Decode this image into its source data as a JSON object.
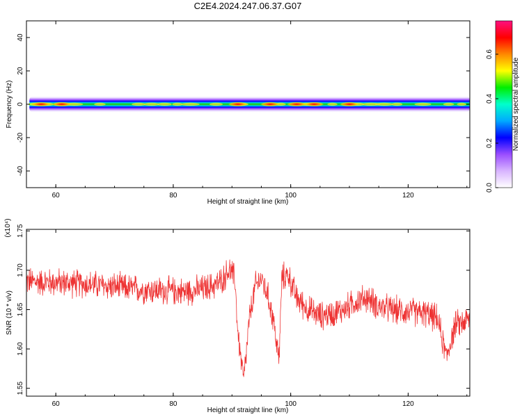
{
  "title": "C2E4.2024.247.06.37.G07",
  "chart_data": [
    {
      "type": "heatmap",
      "xlabel": "Height of straight line (km)",
      "ylabel": "Frequency (Hz)",
      "xlim": [
        55,
        130.5
      ],
      "ylim": [
        -50,
        50
      ],
      "xticks": [
        60,
        80,
        100,
        120
      ],
      "xtick_labels": [
        "60",
        "80",
        "100",
        "120"
      ],
      "yticks": [
        -40,
        -20,
        0,
        20,
        40
      ],
      "ytick_labels": [
        "-40",
        "-20",
        "0",
        "20",
        "40"
      ],
      "colorbar": {
        "label": "Normalized spectral amplitude",
        "range": [
          0,
          0.75
        ],
        "ticks": [
          0,
          0.2,
          0.4,
          0.6
        ],
        "tick_labels": [
          "0.0",
          "0.2",
          "0.4",
          "0.6"
        ],
        "colors": [
          "#ffffff",
          "#d8b4ff",
          "#9a4dff",
          "#0000ff",
          "#00aaff",
          "#00ffcc",
          "#00ee00",
          "#ffff00",
          "#ff8800",
          "#ff0000",
          "#ff1080"
        ]
      },
      "band": {
        "center_freq": 0,
        "half_width_outer": 5,
        "half_width_core": 2.2,
        "hot_spots_x": [
          57.5,
          61,
          91,
          96.5,
          101,
          104,
          110
        ],
        "x_range": [
          55.5,
          130.5
        ]
      }
    },
    {
      "type": "line",
      "xlabel": "Height of straight line (km)",
      "ylabel": "SNR (10 * v/v)",
      "y_multiplier": "(x10⁴)",
      "xlim": [
        55,
        130.5
      ],
      "ylim": [
        1.54,
        1.752
      ],
      "xticks": [
        60,
        80,
        100,
        120
      ],
      "xtick_labels": [
        "60",
        "80",
        "100",
        "120"
      ],
      "yticks": [
        1.55,
        1.6,
        1.65,
        1.7,
        1.75
      ],
      "ytick_labels": [
        "1.55",
        "1.60",
        "1.65",
        "1.70",
        "1.75"
      ],
      "color": "#ee3333",
      "x": [
        55,
        58,
        62,
        66,
        70,
        74,
        78,
        82,
        84,
        86,
        88,
        89.5,
        90.5,
        91,
        92,
        93,
        94,
        95,
        96,
        97,
        98,
        98.5,
        99.5,
        101,
        103,
        105,
        107,
        109,
        111,
        113,
        115,
        117,
        119,
        121,
        123,
        125,
        126.5,
        128,
        130.5
      ],
      "y": [
        1.686,
        1.685,
        1.684,
        1.682,
        1.679,
        1.676,
        1.674,
        1.673,
        1.675,
        1.678,
        1.685,
        1.7,
        1.69,
        1.62,
        1.56,
        1.64,
        1.68,
        1.69,
        1.67,
        1.64,
        1.585,
        1.69,
        1.695,
        1.665,
        1.65,
        1.642,
        1.645,
        1.65,
        1.66,
        1.665,
        1.654,
        1.65,
        1.648,
        1.647,
        1.645,
        1.638,
        1.59,
        1.63,
        1.638
      ],
      "noise_amplitude": 0.018
    }
  ]
}
